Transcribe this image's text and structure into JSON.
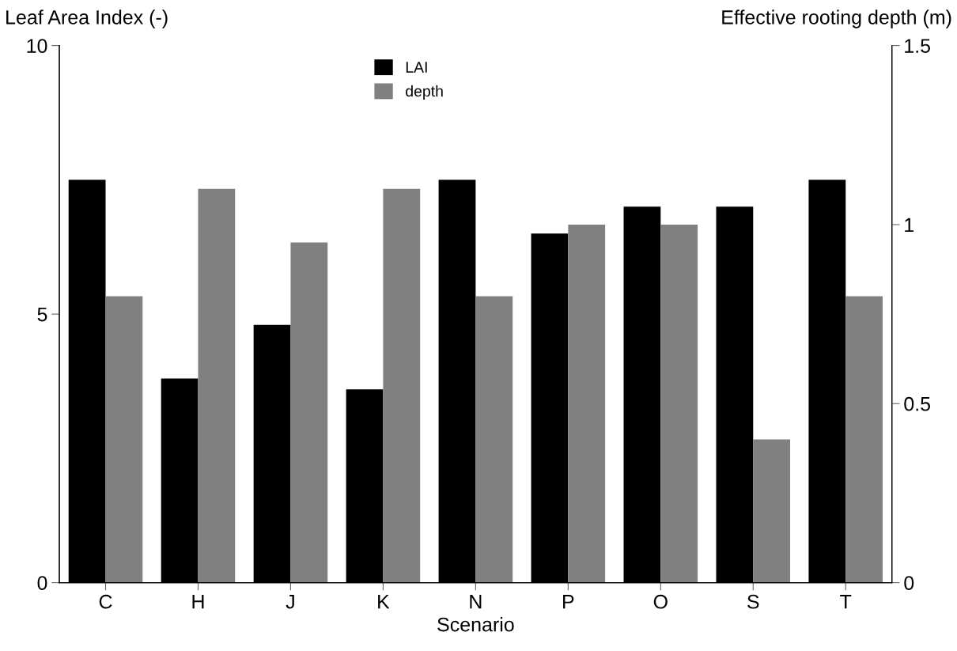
{
  "chart_data": {
    "type": "bar",
    "xlabel": "Scenario",
    "ylabel": "Leaf Area Index (-)",
    "y2label": "Effective rooting depth (m)",
    "categories": [
      "C",
      "H",
      "J",
      "K",
      "N",
      "P",
      "O",
      "S",
      "T"
    ],
    "series": [
      {
        "name": "LAI",
        "color": "#000000",
        "values": [
          7.5,
          3.8,
          4.8,
          3.6,
          7.5,
          6.5,
          7.0,
          7.0,
          7.5
        ]
      },
      {
        "name": "depth",
        "color": "#808080",
        "axis": "y2",
        "values": [
          0.8,
          1.1,
          0.95,
          1.1,
          0.8,
          1.0,
          1.0,
          0.4,
          0.8
        ]
      }
    ],
    "ylim": [
      0,
      10
    ],
    "yticks": [
      0,
      5,
      10
    ],
    "y2lim": [
      0,
      1.5
    ],
    "y2ticks": [
      0,
      0.5,
      1,
      1.5
    ],
    "grid": false,
    "legend": "top"
  }
}
